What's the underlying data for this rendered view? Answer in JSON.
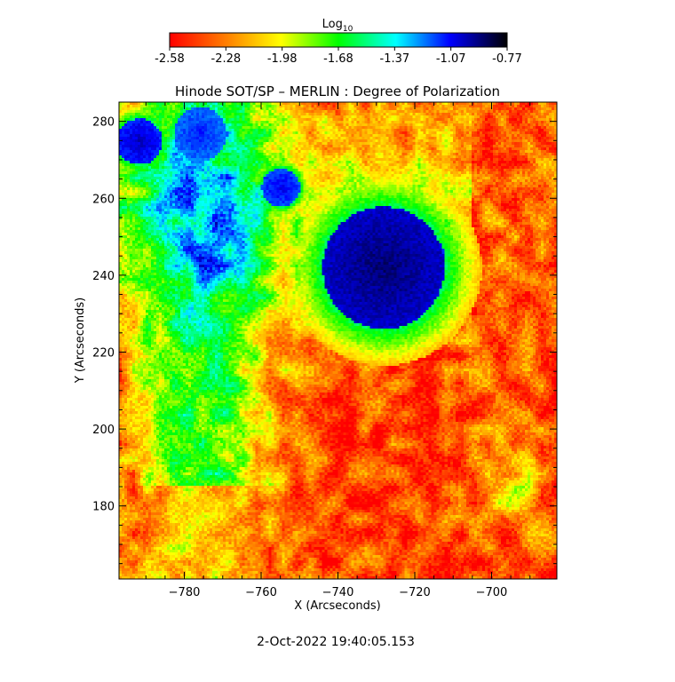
{
  "chart_data": {
    "type": "heatmap",
    "title": "Hinode SOT/SP – MERLIN : Degree of Polarization",
    "xlabel": "X (Arcseconds)",
    "ylabel": "Y (Arcseconds)",
    "xlim": [
      -797,
      -683
    ],
    "ylim": [
      161,
      285
    ],
    "xticks": [
      -780,
      -760,
      -740,
      -720,
      -700
    ],
    "yticks": [
      180,
      200,
      220,
      240,
      260,
      280
    ],
    "colorbar": {
      "label_base": "Log",
      "label_sub": "10",
      "ticks": [
        "-2.58",
        "-2.28",
        "-1.98",
        "-1.68",
        "-1.37",
        "-1.07",
        "-0.77"
      ],
      "range": [
        -2.58,
        -0.77
      ],
      "colormap": [
        "#ff0000",
        "#ff8000",
        "#ffff00",
        "#00ff00",
        "#00ffff",
        "#0000ff",
        "#000000"
      ]
    },
    "features": [
      {
        "x": -728,
        "y": 242,
        "r": 16,
        "value": -0.9
      },
      {
        "x": -718,
        "y": 245,
        "r": 6,
        "value": -1.0
      },
      {
        "x": -755,
        "y": 263,
        "r": 5,
        "value": -1.05
      },
      {
        "x": -792,
        "y": 275,
        "r": 6,
        "value": -1.0
      },
      {
        "x": -776,
        "y": 277,
        "r": 7,
        "value": -1.1
      }
    ]
  },
  "footer": {
    "timestamp": "2-Oct-2022 19:40:05.153"
  }
}
